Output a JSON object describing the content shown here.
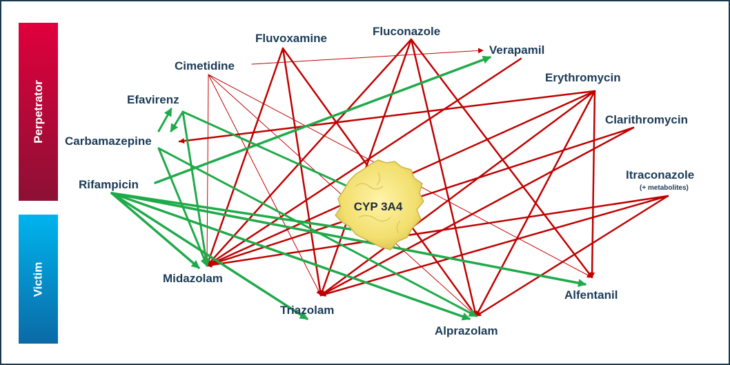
{
  "sidebar": {
    "perpetrator": "Perpetrator",
    "victim": "Victim"
  },
  "enzyme": {
    "label": "CYP 3A4"
  },
  "nodes": {
    "fluvoxamine": "Fluvoxamine",
    "fluconazole": "Fluconazole",
    "verapamil": "Verapamil",
    "cimetidine": "Cimetidine",
    "erythromycin": "Erythromycin",
    "efavirenz": "Efavirenz",
    "clarithromycin": "Clarithromycin",
    "carbamazepine": "Carbamazepine",
    "itraconazole": "Itraconazole",
    "itraconazole_note": "(+ metabolites)",
    "rifampicin": "Rifampicin",
    "midazolam": "Midazolam",
    "triazolam": "Triazolam",
    "alprazolam": "Alprazolam",
    "alfentanil": "Alfentanil"
  },
  "colors": {
    "inhibition": "#c00000",
    "induction": "#1faa4a",
    "perpetrator_bar": "#c8003c",
    "victim_bar": "#0096d6",
    "label_text": "#1b3b57",
    "enzyme_fill": "#f3e27a"
  }
}
